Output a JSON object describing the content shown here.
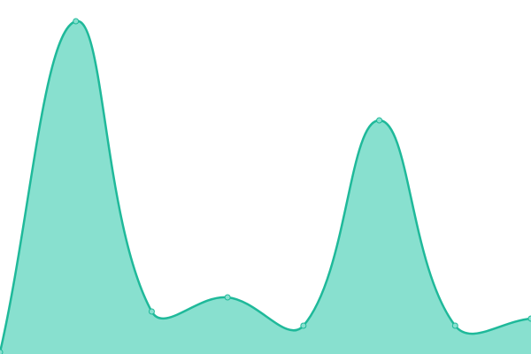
{
  "chart_data": {
    "type": "area",
    "categories": [
      null,
      null,
      null,
      null,
      null,
      null,
      null,
      null
    ],
    "values": [
      0.5,
      94,
      12,
      16,
      8,
      66,
      8,
      10
    ],
    "color": "#1fb99a",
    "fill_color": "#88e0cf",
    "point_radius": 3,
    "ylim": [
      0,
      100
    ]
  }
}
